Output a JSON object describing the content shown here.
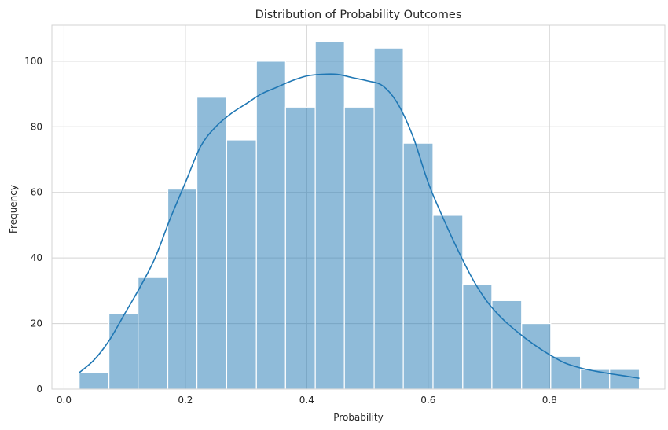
{
  "chart_data": {
    "type": "bar",
    "title": "Distribution of Probability Outcomes",
    "xlabel": "Probability",
    "ylabel": "Frequency",
    "xlim": [
      -0.02,
      0.99
    ],
    "ylim": [
      0,
      111
    ],
    "xticks": [
      0.0,
      0.2,
      0.4,
      0.6,
      0.8
    ],
    "xtick_labels": [
      "0.0",
      "0.2",
      "0.4",
      "0.6",
      "0.8"
    ],
    "yticks": [
      0,
      20,
      40,
      60,
      80,
      100
    ],
    "ytick_labels": [
      "0",
      "20",
      "40",
      "60",
      "80",
      "100"
    ],
    "grid": true,
    "bin_edges": [
      0.025,
      0.074,
      0.122,
      0.171,
      0.219,
      0.268,
      0.317,
      0.365,
      0.414,
      0.462,
      0.511,
      0.559,
      0.608,
      0.657,
      0.705,
      0.754,
      0.802,
      0.851,
      0.899,
      0.948
    ],
    "values": [
      5,
      23,
      34,
      61,
      89,
      76,
      100,
      86,
      106,
      86,
      104,
      75,
      53,
      32,
      27,
      20,
      10,
      6,
      6
    ],
    "kde": {
      "x": [
        0.025,
        0.05,
        0.075,
        0.1,
        0.125,
        0.15,
        0.175,
        0.2,
        0.225,
        0.25,
        0.275,
        0.3,
        0.325,
        0.35,
        0.375,
        0.4,
        0.425,
        0.45,
        0.475,
        0.5,
        0.525,
        0.55,
        0.575,
        0.6,
        0.625,
        0.65,
        0.675,
        0.7,
        0.725,
        0.75,
        0.775,
        0.8,
        0.825,
        0.85,
        0.875,
        0.9,
        0.925,
        0.948
      ],
      "y": [
        5,
        9,
        15,
        23,
        31,
        40,
        52,
        63,
        74,
        80,
        84,
        87,
        90,
        92,
        94,
        95.5,
        96,
        96,
        95,
        94,
        92.5,
        87,
        77,
        63,
        52,
        42,
        33,
        26,
        21,
        17,
        13.5,
        10.5,
        8,
        6.5,
        5.5,
        4.7,
        4,
        3.3
      ]
    },
    "color": "#1f77b4"
  }
}
